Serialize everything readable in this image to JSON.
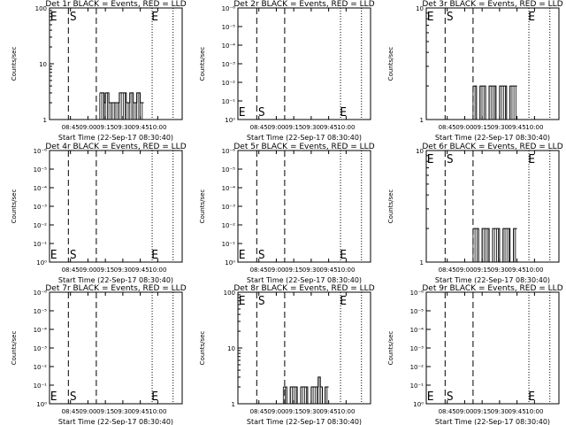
{
  "chart_data": [
    {
      "type": "line",
      "title": "Det 1r BLACK = Events, RED = LLD",
      "xlabel": "Start Time (22-Sep-17 08:30:40)",
      "ylabel": "Counts/sec",
      "x_ticks": [
        "08:45",
        "09:00",
        "09:15",
        "09:30",
        "09:45",
        "10:00"
      ],
      "y_scale": "log",
      "y_ticks": [
        "1",
        "10",
        "100"
      ],
      "ylim": [
        1,
        100
      ],
      "markers": {
        "E_left": "E",
        "S": "S",
        "E_right": "E"
      },
      "series": [
        {
          "color": "#000000",
          "x": [
            9.17,
            9.23,
            9.23,
            9.25,
            9.25,
            9.3,
            9.3,
            9.35,
            9.35,
            9.4,
            9.4,
            9.45,
            9.45,
            9.55,
            9.55,
            9.6,
            9.6,
            9.65,
            9.65,
            9.7,
            9.7,
            9.75,
            9.75,
            9.8
          ],
          "y": [
            3,
            3,
            2,
            2,
            3,
            3,
            2,
            2,
            2,
            2,
            2,
            2,
            3,
            3,
            2,
            2,
            3,
            3,
            2,
            2,
            3,
            3,
            2,
            2
          ]
        }
      ]
    },
    {
      "type": "line",
      "title": "Det 2r BLACK = Events, RED = LLD",
      "xlabel": "Start Time (22-Sep-17 08:30:40)",
      "ylabel": "Counts/sec",
      "x_ticks": [
        "08:45",
        "09:00",
        "09:15",
        "09:30",
        "09:45",
        "10:00"
      ],
      "y_scale": "log",
      "y_ticks": [
        "10⁰",
        "10⁻¹",
        "10⁻²",
        "10⁻³",
        "10⁻⁴",
        "10⁻⁵",
        "10⁻⁶"
      ],
      "markers": {
        "E_left": "E",
        "S": "S",
        "E_right": "E"
      },
      "series": []
    },
    {
      "type": "line",
      "title": "Det 3r BLACK = Events, RED = LLD",
      "xlabel": "Start Time (22-Sep-17 08:30:40)",
      "ylabel": "Counts/sec",
      "x_ticks": [
        "08:45",
        "09:00",
        "09:15",
        "09:30",
        "09:45",
        "10:00"
      ],
      "y_scale": "log",
      "y_ticks": [
        "1",
        "10"
      ],
      "ylim": [
        1,
        10
      ],
      "markers": {
        "E_left": "E",
        "S": "S",
        "E_right": "E"
      },
      "series": [
        {
          "color": "#000000",
          "x": [
            9.12,
            9.17,
            9.17,
            9.22,
            9.22,
            9.3,
            9.3,
            9.35,
            9.35,
            9.45,
            9.45,
            9.5,
            9.5,
            9.6,
            9.6,
            9.65,
            9.65,
            9.75
          ],
          "y": [
            2,
            2,
            1,
            1,
            2,
            2,
            1,
            1,
            2,
            2,
            1,
            1,
            2,
            2,
            1,
            1,
            2,
            2
          ]
        }
      ]
    },
    {
      "type": "line",
      "title": "Det 4r BLACK = Events, RED = LLD",
      "xlabel": "Start Time (22-Sep-17 08:30:40)",
      "ylabel": "Counts/sec",
      "x_ticks": [
        "08:45",
        "09:00",
        "09:15",
        "09:30",
        "09:45",
        "10:00"
      ],
      "y_scale": "log",
      "y_ticks": [
        "10⁰",
        "10⁻¹",
        "10⁻²",
        "10⁻³",
        "10⁻⁴",
        "10⁻⁵",
        "10⁻⁶"
      ],
      "markers": {
        "E_left": "E",
        "S": "S",
        "E_right": "E"
      },
      "series": []
    },
    {
      "type": "line",
      "title": "Det 5r BLACK = Events, RED = LLD",
      "xlabel": "Start Time (22-Sep-17 08:30:40)",
      "ylabel": "Counts/sec",
      "x_ticks": [
        "08:45",
        "09:00",
        "09:15",
        "09:30",
        "09:45",
        "10:00"
      ],
      "y_scale": "log",
      "y_ticks": [
        "10⁰",
        "10⁻¹",
        "10⁻²",
        "10⁻³",
        "10⁻⁴",
        "10⁻⁵",
        "10⁻⁶"
      ],
      "markers": {
        "E_left": "E",
        "S": "S",
        "E_right": "E"
      },
      "series": []
    },
    {
      "type": "line",
      "title": "Det 6r BLACK = Events, RED = LLD",
      "xlabel": "Start Time (22-Sep-17 08:30:40)",
      "ylabel": "Counts/sec",
      "x_ticks": [
        "08:45",
        "09:00",
        "09:15",
        "09:30",
        "09:45",
        "10:00"
      ],
      "y_scale": "log",
      "y_ticks": [
        "1",
        "10"
      ],
      "ylim": [
        1,
        10
      ],
      "markers": {
        "E_left": "E",
        "S": "S",
        "E_right": "E"
      },
      "series": [
        {
          "color": "#000000",
          "x": [
            9.12,
            9.2,
            9.2,
            9.25,
            9.25,
            9.35,
            9.35,
            9.4,
            9.4,
            9.5,
            9.5,
            9.55,
            9.55,
            9.65,
            9.65,
            9.7,
            9.7,
            9.75
          ],
          "y": [
            2,
            2,
            1,
            1,
            2,
            2,
            1,
            1,
            2,
            2,
            1,
            1,
            2,
            2,
            1,
            1,
            2,
            2
          ]
        }
      ]
    },
    {
      "type": "line",
      "title": "Det 7r BLACK = Events, RED = LLD",
      "xlabel": "Start Time (22-Sep-17 08:30:40)",
      "ylabel": "Counts/sec",
      "x_ticks": [
        "08:45",
        "09:00",
        "09:15",
        "09:30",
        "09:45",
        "10:00"
      ],
      "y_scale": "log",
      "y_ticks": [
        "10⁰",
        "10⁻¹",
        "10⁻²",
        "10⁻³",
        "10⁻⁴",
        "10⁻⁵",
        "10⁻⁶"
      ],
      "markers": {
        "E_left": "E",
        "S": "S",
        "E_right": "E"
      },
      "series": []
    },
    {
      "type": "line",
      "title": "Det 8r BLACK = Events, RED = LLD",
      "xlabel": "Start Time (22-Sep-17 08:30:40)",
      "ylabel": "Counts/sec",
      "x_ticks": [
        "08:45",
        "09:00",
        "09:15",
        "09:30",
        "09:45",
        "10:00"
      ],
      "y_scale": "log",
      "y_ticks": [
        "1",
        "10",
        "100"
      ],
      "ylim": [
        1,
        100
      ],
      "markers": {
        "E_left": "E",
        "S": "S",
        "E_right": "E"
      },
      "series": [
        {
          "color": "#000000",
          "x": [
            9.1,
            9.15,
            9.15,
            9.2,
            9.2,
            9.3,
            9.3,
            9.35,
            9.35,
            9.45,
            9.45,
            9.5,
            9.5,
            9.6,
            9.6,
            9.63,
            9.63,
            9.66,
            9.66,
            9.7,
            9.7,
            9.75
          ],
          "y": [
            2,
            2,
            1,
            1,
            2,
            2,
            1,
            1,
            2,
            2,
            1,
            1,
            2,
            2,
            3,
            3,
            2,
            2,
            1,
            1,
            2,
            2
          ]
        }
      ]
    },
    {
      "type": "line",
      "title": "Det 9r BLACK = Events, RED = LLD",
      "xlabel": "Start Time (22-Sep-17 08:30:40)",
      "ylabel": "Counts/sec",
      "x_ticks": [
        "08:45",
        "09:00",
        "09:15",
        "09:30",
        "09:45",
        "10:00"
      ],
      "y_scale": "log",
      "y_ticks": [
        "10⁰",
        "10⁻¹",
        "10⁻²",
        "10⁻³",
        "10⁻⁴",
        "10⁻⁵",
        "10⁻⁶"
      ],
      "markers": {
        "E_left": "E",
        "S": "S",
        "E_right": "E"
      },
      "series": []
    }
  ]
}
